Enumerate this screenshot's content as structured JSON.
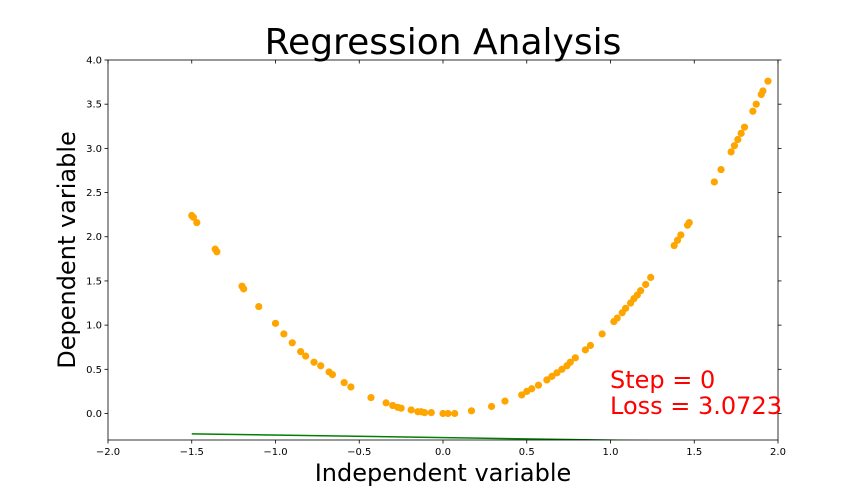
{
  "chart_data": {
    "type": "scatter",
    "title": "Regression Analysis",
    "xlabel": "Independent variable",
    "ylabel": "Dependent variable",
    "xlim": [
      -2.0,
      2.0
    ],
    "ylim": [
      -0.3,
      4.0
    ],
    "x_ticks": [
      "−2.0",
      "−1.5",
      "−1.0",
      "−0.5",
      "0.0",
      "0.5",
      "1.0",
      "1.5",
      "2.0"
    ],
    "y_ticks": [
      "0.0",
      "0.5",
      "1.0",
      "1.5",
      "2.0",
      "2.5",
      "3.0",
      "3.5",
      "4.0"
    ],
    "grid": false,
    "colors": {
      "points": "#ffa500",
      "fit_line": "#008000",
      "annotation": "#ff0000"
    },
    "points": {
      "x": [
        -1.5,
        -1.49,
        -1.47,
        -1.36,
        -1.35,
        -1.2,
        -1.19,
        -1.1,
        -1.0,
        -0.95,
        -0.9,
        -0.85,
        -0.82,
        -0.77,
        -0.73,
        -0.68,
        -0.66,
        -0.59,
        -0.55,
        -0.43,
        -0.34,
        -0.3,
        -0.27,
        -0.25,
        -0.19,
        -0.15,
        -0.13,
        -0.11,
        -0.07,
        0.0,
        0.03,
        0.07,
        0.17,
        0.29,
        0.37,
        0.47,
        0.5,
        0.53,
        0.57,
        0.62,
        0.65,
        0.68,
        0.71,
        0.74,
        0.76,
        0.79,
        0.85,
        0.88,
        0.95,
        1.02,
        1.04,
        1.07,
        1.09,
        1.12,
        1.14,
        1.16,
        1.18,
        1.21,
        1.24,
        1.38,
        1.4,
        1.42,
        1.46,
        1.47,
        1.62,
        1.66,
        1.72,
        1.74,
        1.76,
        1.78,
        1.8,
        1.85,
        1.87,
        1.9,
        1.91,
        1.94
      ],
      "y": [
        2.24,
        2.22,
        2.16,
        1.86,
        1.83,
        1.44,
        1.41,
        1.21,
        1.02,
        0.9,
        0.8,
        0.7,
        0.65,
        0.58,
        0.54,
        0.47,
        0.44,
        0.35,
        0.3,
        0.18,
        0.12,
        0.09,
        0.07,
        0.06,
        0.04,
        0.02,
        0.02,
        0.01,
        0.01,
        0.0,
        0.0,
        0.0,
        0.03,
        0.08,
        0.14,
        0.21,
        0.25,
        0.28,
        0.32,
        0.38,
        0.42,
        0.46,
        0.5,
        0.54,
        0.58,
        0.63,
        0.72,
        0.77,
        0.9,
        1.04,
        1.08,
        1.14,
        1.19,
        1.25,
        1.3,
        1.34,
        1.39,
        1.46,
        1.54,
        1.9,
        1.96,
        2.02,
        2.13,
        2.16,
        2.62,
        2.76,
        2.96,
        3.03,
        3.1,
        3.17,
        3.24,
        3.42,
        3.5,
        3.61,
        3.65,
        3.76
      ]
    },
    "fit_line": {
      "x": [
        -1.5,
        2.0
      ],
      "y": [
        -0.23,
        -0.33
      ]
    },
    "annotation": [
      "Step = 0",
      "Loss = 3.0723"
    ]
  }
}
